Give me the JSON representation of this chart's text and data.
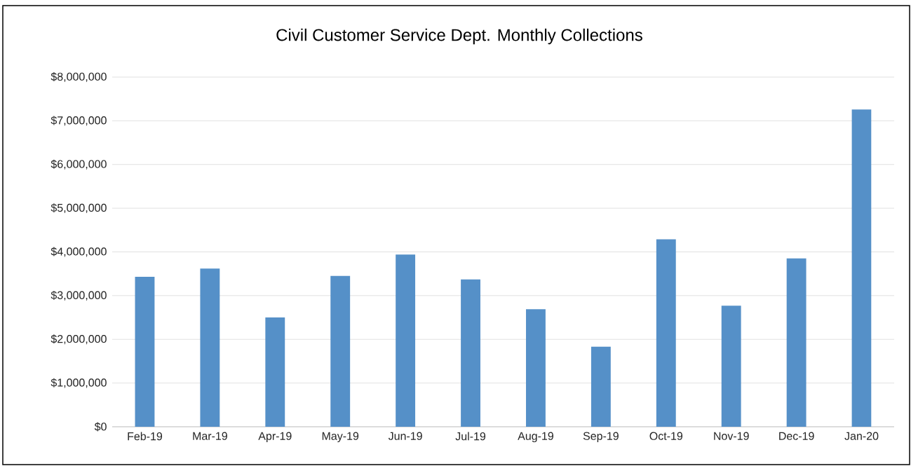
{
  "chart_data": {
    "type": "bar",
    "title": "Civil Customer Service  Dept. Monthly Collections",
    "categories": [
      "Feb-19",
      "Mar-19",
      "Apr-19",
      "May-19",
      "Jun-19",
      "Jul-19",
      "Aug-19",
      "Sep-19",
      "Oct-19",
      "Nov-19",
      "Dec-19",
      "Jan-20"
    ],
    "values": [
      3430000,
      3620000,
      2500000,
      3450000,
      3940000,
      3370000,
      2690000,
      1830000,
      4290000,
      2770000,
      3850000,
      7260000
    ],
    "color": "#5590c8",
    "ylim": [
      0,
      8000000
    ],
    "yticks": [
      {
        "value": 0,
        "label": "$0"
      },
      {
        "value": 1000000,
        "label": "$1,000,000"
      },
      {
        "value": 2000000,
        "label": "$2,000,000"
      },
      {
        "value": 3000000,
        "label": "$3,000,000"
      },
      {
        "value": 4000000,
        "label": "$4,000,000"
      },
      {
        "value": 5000000,
        "label": "$5,000,000"
      },
      {
        "value": 6000000,
        "label": "$6,000,000"
      },
      {
        "value": 7000000,
        "label": "$7,000,000"
      },
      {
        "value": 8000000,
        "label": "$8,000,000"
      }
    ],
    "grid": "y"
  }
}
